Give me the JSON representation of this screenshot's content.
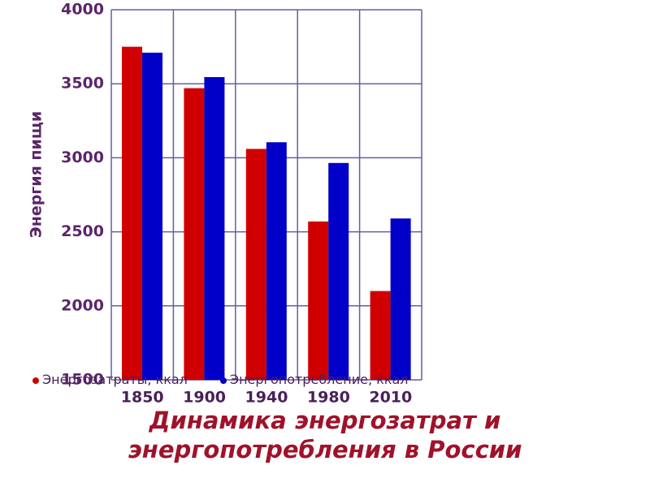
{
  "chart_data": {
    "type": "bar",
    "title": "Динамика энергозатрат и энергопотребления в России",
    "y_label": "Энергия пищи",
    "categories": [
      "1850",
      "1900",
      "1940",
      "1980",
      "2010"
    ],
    "series": [
      {
        "name": "Энергозатраты, ккал",
        "color": "#d10000",
        "values": [
          3750,
          3470,
          3060,
          2570,
          2100
        ]
      },
      {
        "name": "Энергопотребление, ккал",
        "color": "#0000c8",
        "values": [
          3710,
          3545,
          3105,
          2965,
          2590
        ]
      }
    ],
    "ylim": [
      1500,
      4000
    ],
    "yticks": [
      1500,
      2000,
      2500,
      3000,
      3500,
      4000
    ],
    "grid": true
  }
}
